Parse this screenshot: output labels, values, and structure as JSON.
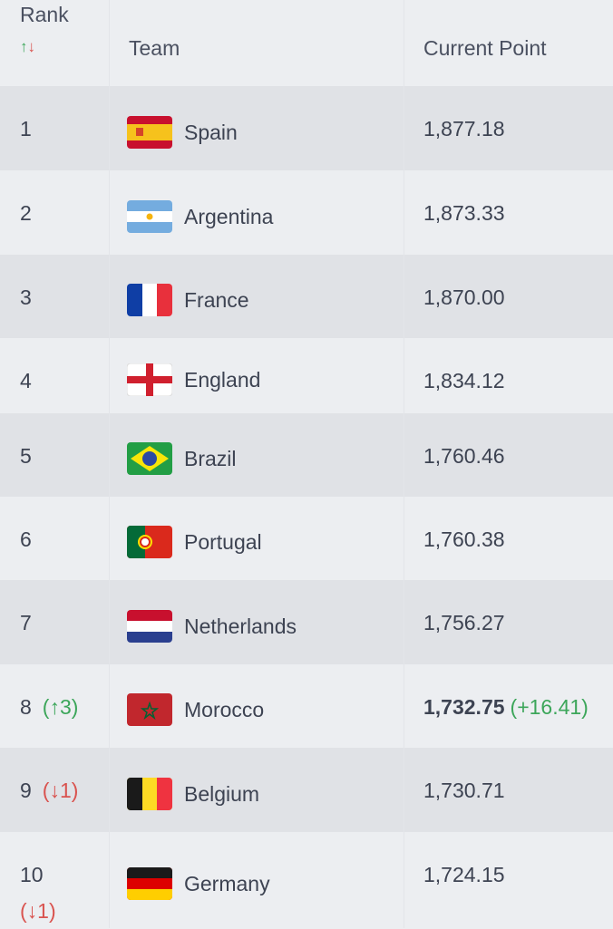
{
  "table": {
    "header": {
      "rank": "Rank",
      "rank_up": "↑",
      "rank_down": "↓",
      "team": "Team",
      "points": "Current Point"
    },
    "rows": [
      {
        "rank": "1",
        "team": "Spain",
        "points": "1,877.18"
      },
      {
        "rank": "2",
        "team": "Argentina",
        "points": "1,873.33"
      },
      {
        "rank": "3",
        "team": "France",
        "points": "1,870.00"
      },
      {
        "rank": "4",
        "team": "England",
        "points": "1,834.12"
      },
      {
        "rank": "5",
        "team": "Brazil",
        "points": "1,760.46"
      },
      {
        "rank": "6",
        "team": "Portugal",
        "points": "1,760.38"
      },
      {
        "rank": "7",
        "team": "Netherlands",
        "points": "1,756.27"
      },
      {
        "rank": "8",
        "rank_change": "(↑3)",
        "team": "Morocco",
        "points": "1,732.75",
        "points_change": "(+16.41)"
      },
      {
        "rank": "9",
        "rank_change": "(↓1)",
        "team": "Belgium",
        "points": "1,730.71"
      },
      {
        "rank": "10",
        "rank_change": "(↓1)",
        "team": "Germany",
        "points": "1,724.15"
      }
    ]
  }
}
